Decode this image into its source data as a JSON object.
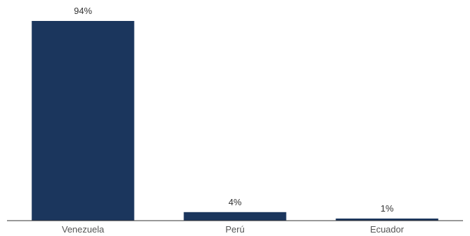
{
  "chart_data": {
    "type": "bar",
    "categories": [
      "Venezuela",
      "Perú",
      "Ecuador"
    ],
    "values": [
      94,
      4,
      1
    ],
    "value_labels": [
      "94%",
      "4%",
      "1%"
    ],
    "title": "",
    "xlabel": "",
    "ylabel": "",
    "ylim": [
      0,
      94
    ],
    "grid": false,
    "legend": "none",
    "colors": {
      "bar": "#1b365d",
      "axis": "#333333",
      "label_text": "#333333",
      "tick_text": "#555555"
    }
  }
}
